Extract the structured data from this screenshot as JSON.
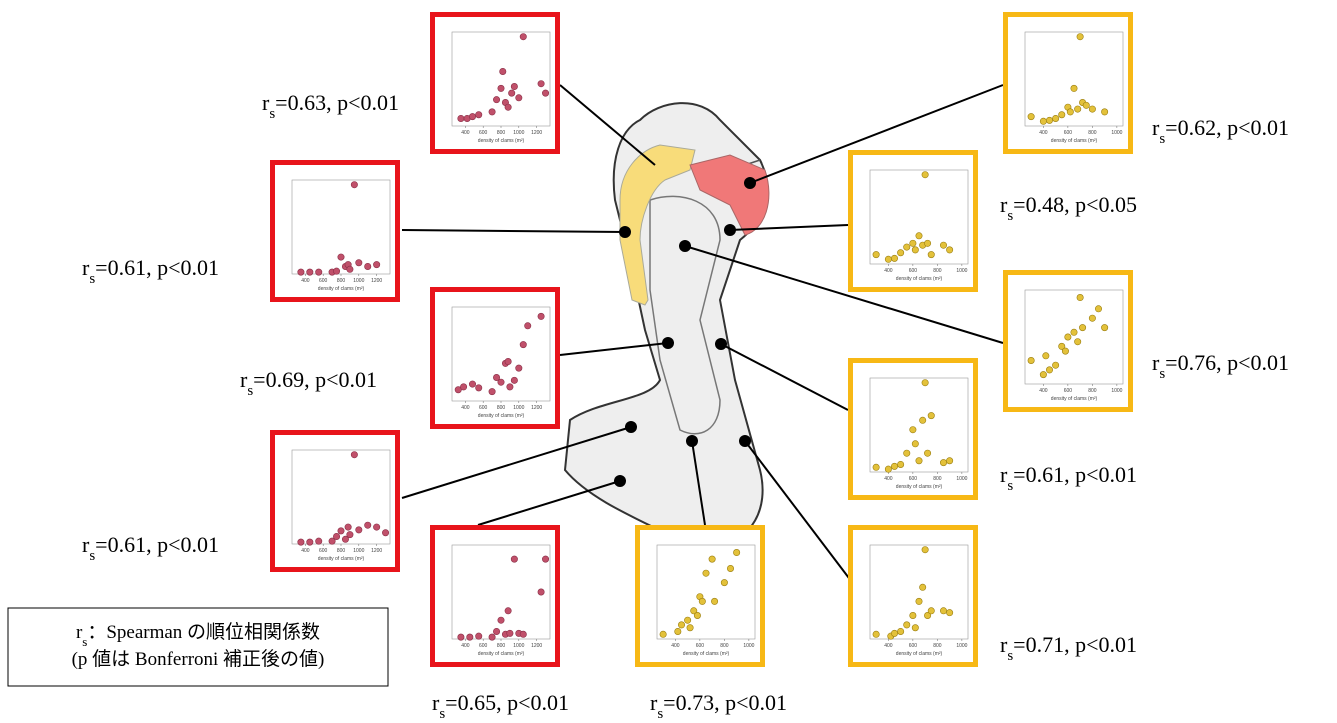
{
  "panels": [
    {
      "kind": "red",
      "label": {
        "r": "r",
        "sub": "s",
        "text": "=0.63, p<0.01"
      },
      "xlim": [
        250,
        1350
      ],
      "xticks": [
        400,
        600,
        800,
        1000,
        1200
      ],
      "ylim": [
        0,
        100
      ],
      "points": [
        [
          350,
          8
        ],
        [
          420,
          8
        ],
        [
          480,
          10
        ],
        [
          550,
          12
        ],
        [
          700,
          15
        ],
        [
          750,
          28
        ],
        [
          800,
          40
        ],
        [
          820,
          58
        ],
        [
          850,
          25
        ],
        [
          880,
          20
        ],
        [
          920,
          35
        ],
        [
          950,
          42
        ],
        [
          1000,
          30
        ],
        [
          1050,
          95
        ],
        [
          1250,
          45
        ],
        [
          1300,
          35
        ]
      ]
    },
    {
      "kind": "red",
      "label": {
        "r": "r",
        "sub": "s",
        "text": "=0.61, p<0.01"
      },
      "xlim": [
        250,
        1350
      ],
      "xticks": [
        400,
        600,
        800,
        1000,
        1200
      ],
      "ylim": [
        0,
        100
      ],
      "points": [
        [
          350,
          2
        ],
        [
          450,
          2
        ],
        [
          550,
          2
        ],
        [
          700,
          2
        ],
        [
          750,
          3
        ],
        [
          800,
          18
        ],
        [
          850,
          8
        ],
        [
          880,
          10
        ],
        [
          900,
          5
        ],
        [
          950,
          95
        ],
        [
          1000,
          12
        ],
        [
          1100,
          8
        ],
        [
          1200,
          10
        ]
      ]
    },
    {
      "kind": "red",
      "label": {
        "r": "r",
        "sub": "s",
        "text": "=0.69, p<0.01"
      },
      "xlim": [
        250,
        1350
      ],
      "xticks": [
        400,
        600,
        800,
        1000,
        1200
      ],
      "ylim": [
        0,
        100
      ],
      "points": [
        [
          320,
          12
        ],
        [
          380,
          15
        ],
        [
          480,
          18
        ],
        [
          550,
          14
        ],
        [
          700,
          10
        ],
        [
          750,
          25
        ],
        [
          800,
          20
        ],
        [
          850,
          40
        ],
        [
          880,
          42
        ],
        [
          900,
          15
        ],
        [
          950,
          22
        ],
        [
          1000,
          35
        ],
        [
          1050,
          60
        ],
        [
          1100,
          80
        ],
        [
          1250,
          90
        ]
      ]
    },
    {
      "kind": "red",
      "label": {
        "r": "r",
        "sub": "s",
        "text": "=0.61, p<0.01"
      },
      "xlim": [
        250,
        1350
      ],
      "xticks": [
        400,
        600,
        800,
        1000,
        1200
      ],
      "ylim": [
        0,
        100
      ],
      "points": [
        [
          350,
          2
        ],
        [
          450,
          2
        ],
        [
          550,
          3
        ],
        [
          700,
          3
        ],
        [
          750,
          8
        ],
        [
          800,
          14
        ],
        [
          850,
          5
        ],
        [
          880,
          18
        ],
        [
          900,
          10
        ],
        [
          950,
          95
        ],
        [
          1000,
          15
        ],
        [
          1100,
          20
        ],
        [
          1200,
          18
        ],
        [
          1300,
          12
        ]
      ]
    },
    {
      "kind": "red",
      "label": {
        "r": "r",
        "sub": "s",
        "text": "=0.65, p<0.01"
      },
      "xlim": [
        250,
        1350
      ],
      "xticks": [
        400,
        600,
        800,
        1000,
        1200
      ],
      "ylim": [
        0,
        100
      ],
      "points": [
        [
          350,
          2
        ],
        [
          450,
          2
        ],
        [
          550,
          3
        ],
        [
          700,
          2
        ],
        [
          750,
          8
        ],
        [
          800,
          20
        ],
        [
          850,
          5
        ],
        [
          880,
          30
        ],
        [
          900,
          6
        ],
        [
          950,
          85
        ],
        [
          1000,
          6
        ],
        [
          1050,
          5
        ],
        [
          1250,
          50
        ],
        [
          1300,
          85
        ]
      ]
    },
    {
      "kind": "yellow",
      "label": {
        "r": "r",
        "sub": "s",
        "text": "=0.73, p<0.01"
      },
      "xlim": [
        250,
        1050
      ],
      "xticks": [
        400,
        600,
        800,
        1000
      ],
      "ylim": [
        0,
        100
      ],
      "points": [
        [
          300,
          5
        ],
        [
          420,
          8
        ],
        [
          450,
          15
        ],
        [
          500,
          20
        ],
        [
          520,
          12
        ],
        [
          550,
          30
        ],
        [
          580,
          25
        ],
        [
          600,
          45
        ],
        [
          620,
          40
        ],
        [
          650,
          70
        ],
        [
          700,
          85
        ],
        [
          720,
          40
        ],
        [
          800,
          60
        ],
        [
          850,
          75
        ],
        [
          900,
          92
        ]
      ]
    },
    {
      "kind": "yellow",
      "label": {
        "r": "r",
        "sub": "s",
        "text": "=0.62, p<0.01"
      },
      "xlim": [
        250,
        1050
      ],
      "xticks": [
        400,
        600,
        800,
        1000
      ],
      "ylim": [
        0,
        100
      ],
      "points": [
        [
          300,
          10
        ],
        [
          400,
          5
        ],
        [
          450,
          6
        ],
        [
          500,
          8
        ],
        [
          550,
          12
        ],
        [
          600,
          20
        ],
        [
          620,
          15
        ],
        [
          650,
          40
        ],
        [
          680,
          18
        ],
        [
          700,
          95
        ],
        [
          720,
          25
        ],
        [
          750,
          22
        ],
        [
          800,
          18
        ],
        [
          900,
          15
        ]
      ]
    },
    {
      "kind": "yellow",
      "label": {
        "r": "r",
        "sub": "s",
        "text": "=0.48, p<0.05"
      },
      "xlim": [
        250,
        1050
      ],
      "xticks": [
        400,
        600,
        800,
        1000
      ],
      "ylim": [
        0,
        100
      ],
      "points": [
        [
          300,
          10
        ],
        [
          400,
          5
        ],
        [
          450,
          6
        ],
        [
          500,
          12
        ],
        [
          550,
          18
        ],
        [
          600,
          22
        ],
        [
          620,
          15
        ],
        [
          650,
          30
        ],
        [
          680,
          20
        ],
        [
          700,
          95
        ],
        [
          720,
          22
        ],
        [
          750,
          10
        ],
        [
          850,
          20
        ],
        [
          900,
          15
        ]
      ]
    },
    {
      "kind": "yellow",
      "label": {
        "r": "r",
        "sub": "s",
        "text": "=0.76, p<0.01"
      },
      "xlim": [
        250,
        1050
      ],
      "xticks": [
        400,
        600,
        800,
        1000
      ],
      "ylim": [
        0,
        100
      ],
      "points": [
        [
          300,
          25
        ],
        [
          400,
          10
        ],
        [
          420,
          30
        ],
        [
          450,
          15
        ],
        [
          500,
          20
        ],
        [
          550,
          40
        ],
        [
          580,
          35
        ],
        [
          600,
          50
        ],
        [
          650,
          55
        ],
        [
          680,
          45
        ],
        [
          700,
          92
        ],
        [
          720,
          60
        ],
        [
          800,
          70
        ],
        [
          850,
          80
        ],
        [
          900,
          60
        ]
      ]
    },
    {
      "kind": "yellow",
      "label": {
        "r": "r",
        "sub": "s",
        "text": "=0.61, p<0.01"
      },
      "xlim": [
        250,
        1050
      ],
      "xticks": [
        400,
        600,
        800,
        1000
      ],
      "ylim": [
        0,
        100
      ],
      "points": [
        [
          300,
          5
        ],
        [
          400,
          3
        ],
        [
          450,
          6
        ],
        [
          500,
          8
        ],
        [
          550,
          20
        ],
        [
          600,
          45
        ],
        [
          620,
          30
        ],
        [
          650,
          12
        ],
        [
          680,
          55
        ],
        [
          700,
          95
        ],
        [
          720,
          20
        ],
        [
          750,
          60
        ],
        [
          850,
          10
        ],
        [
          900,
          12
        ]
      ]
    },
    {
      "kind": "yellow",
      "label": {
        "r": "r",
        "sub": "s",
        "text": "=0.71, p<0.01"
      },
      "xlim": [
        250,
        1050
      ],
      "xticks": [
        400,
        600,
        800,
        1000
      ],
      "ylim": [
        0,
        100
      ],
      "points": [
        [
          300,
          5
        ],
        [
          420,
          3
        ],
        [
          450,
          6
        ],
        [
          500,
          8
        ],
        [
          550,
          15
        ],
        [
          600,
          25
        ],
        [
          620,
          12
        ],
        [
          650,
          40
        ],
        [
          680,
          55
        ],
        [
          700,
          95
        ],
        [
          720,
          25
        ],
        [
          750,
          30
        ],
        [
          850,
          30
        ],
        [
          900,
          28
        ]
      ]
    }
  ],
  "axis_title": "density of clams (m²)",
  "legend": {
    "line1": {
      "r": "r",
      "sub": "s",
      "text": "：Spearman の順位相関係数"
    },
    "line2": "(p 値は Bonferroni 補正後の値)"
  }
}
